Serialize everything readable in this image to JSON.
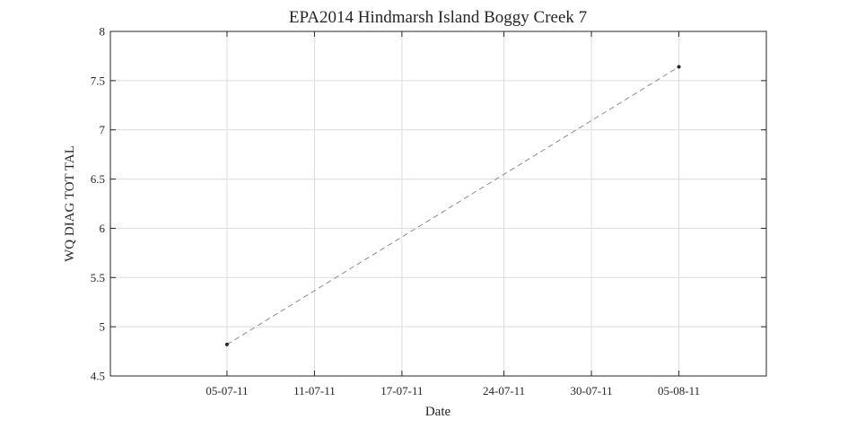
{
  "chart_data": {
    "type": "line",
    "title": "EPA2014 Hindmarsh Island Boggy Creek 7",
    "xlabel": "Date",
    "ylabel": "WQ DIAG TOT TAL",
    "x_ticks": [
      "05-07-11",
      "11-07-11",
      "17-07-11",
      "24-07-11",
      "30-07-11",
      "05-08-11"
    ],
    "y_ticks": [
      "4.5",
      "5",
      "5.5",
      "6",
      "6.5",
      "7",
      "7.5",
      "8"
    ],
    "ylim": [
      4.5,
      8
    ],
    "xlim": [
      "2011-06-27",
      "2011-08-11"
    ],
    "grid": true,
    "series": [
      {
        "x": [
          "2011-07-05",
          "2011-08-05"
        ],
        "values": [
          4.82,
          7.64
        ],
        "line_style": "dashed",
        "line_color": "#8c8c8c",
        "marker_color": "#262626"
      }
    ]
  }
}
